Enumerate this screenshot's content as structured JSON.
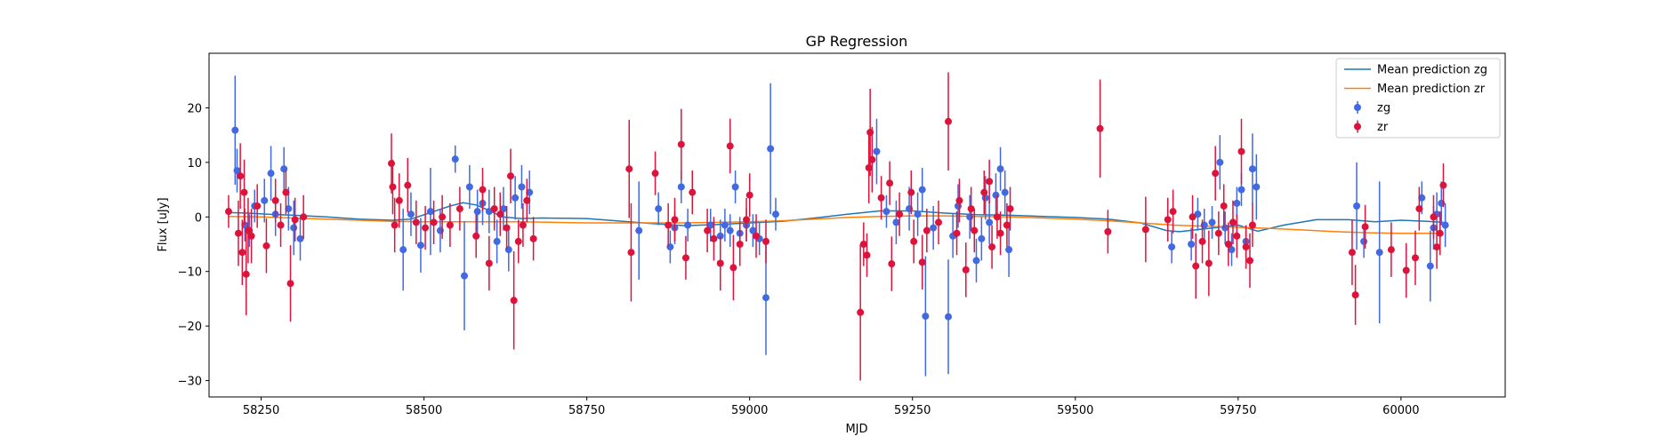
{
  "chart_data": {
    "type": "scatter",
    "title": "GP Regression",
    "xlabel": "MJD",
    "ylabel": "Flux [uJy]",
    "xlim": [
      58170,
      60160
    ],
    "ylim": [
      -33,
      30
    ],
    "xticks": [
      58250,
      58500,
      58750,
      59000,
      59250,
      59500,
      59750,
      60000
    ],
    "yticks": [
      -30,
      -20,
      -10,
      0,
      10,
      20
    ],
    "grid": false,
    "legend_position": "top-right",
    "colors": {
      "zg_line": "#1f77b4",
      "zr_line": "#ff7f0e",
      "zg_points": "#4169e1",
      "zr_points": "#dc143c"
    },
    "lines": [
      {
        "name": "Mean prediction zg",
        "x": [
          58200,
          58230,
          58260,
          58300,
          58350,
          58400,
          58450,
          58480,
          58510,
          58540,
          58560,
          58580,
          58600,
          58620,
          58650,
          58680,
          58750,
          58850,
          58900,
          58950,
          59000,
          59050,
          59100,
          59150,
          59200,
          59250,
          59300,
          59350,
          59400,
          59450,
          59500,
          59550,
          59600,
          59640,
          59660,
          59690,
          59720,
          59750,
          59780,
          59820,
          59870,
          59920,
          59960,
          60000,
          60040,
          60065
        ],
        "y": [
          0.8,
          0.7,
          0.5,
          0.3,
          0.0,
          -0.4,
          -0.6,
          -0.4,
          0.8,
          2.0,
          2.6,
          2.2,
          1.2,
          0.0,
          -0.3,
          -0.2,
          -0.3,
          -1.2,
          -1.6,
          -1.4,
          -1.1,
          -0.8,
          -0.2,
          0.5,
          1.1,
          1.1,
          0.7,
          0.4,
          0.3,
          0.1,
          -0.1,
          -0.4,
          -1.1,
          -2.5,
          -2.7,
          -2.3,
          -1.9,
          -1.5,
          -2.6,
          -1.5,
          -0.5,
          -0.5,
          -0.9,
          -0.6,
          -0.8,
          -1.0
        ]
      },
      {
        "name": "Mean prediction zr",
        "x": [
          58200,
          58250,
          58300,
          58350,
          58400,
          58450,
          58500,
          58550,
          58600,
          58650,
          58700,
          58750,
          58800,
          58850,
          58900,
          58950,
          59000,
          59050,
          59100,
          59150,
          59200,
          59250,
          59300,
          59350,
          59400,
          59450,
          59500,
          59550,
          59600,
          59650,
          59700,
          59750,
          59800,
          59850,
          59900,
          59950,
          60000,
          60065
        ],
        "y": [
          0.1,
          0.0,
          -0.2,
          -0.4,
          -0.6,
          -0.8,
          -0.9,
          -0.9,
          -0.9,
          -0.9,
          -1.0,
          -1.1,
          -1.1,
          -1.1,
          -1.1,
          -1.0,
          -0.9,
          -0.7,
          -0.4,
          -0.1,
          0.1,
          0.2,
          0.2,
          0.1,
          0.0,
          -0.2,
          -0.4,
          -0.7,
          -1.1,
          -1.5,
          -1.7,
          -1.9,
          -2.1,
          -2.4,
          -2.7,
          -2.9,
          -3.0,
          -3.0
        ]
      }
    ],
    "series": [
      {
        "name": "zg",
        "points": [
          [
            58210,
            15.9,
            10.0
          ],
          [
            58213,
            8.5,
            4.0
          ],
          [
            58225,
            -1.5,
            3.0
          ],
          [
            58232,
            -2.5,
            3.0
          ],
          [
            58240,
            2.0,
            3.0
          ],
          [
            58255,
            3.0,
            4.0
          ],
          [
            58265,
            8.0,
            5.0
          ],
          [
            58272,
            0.5,
            4.0
          ],
          [
            58285,
            8.8,
            4.0
          ],
          [
            58292,
            1.5,
            4.0
          ],
          [
            58300,
            -2.0,
            5.0
          ],
          [
            58310,
            -4.0,
            4.0
          ],
          [
            58468,
            -6.0,
            7.5
          ],
          [
            58480,
            0.5,
            4.0
          ],
          [
            58495,
            -5.2,
            5.0
          ],
          [
            58510,
            1.0,
            8.0
          ],
          [
            58525,
            -2.5,
            4.0
          ],
          [
            58548,
            10.6,
            2.5
          ],
          [
            58562,
            -10.8,
            10.0
          ],
          [
            58570,
            5.5,
            4.0
          ],
          [
            58582,
            1.0,
            4.0
          ],
          [
            58590,
            2.5,
            4.0
          ],
          [
            58600,
            1.0,
            4.0
          ],
          [
            58612,
            -4.5,
            4.0
          ],
          [
            58622,
            1.5,
            4.0
          ],
          [
            58630,
            -6.0,
            4.0
          ],
          [
            58640,
            3.5,
            4.0
          ],
          [
            58650,
            5.5,
            4.0
          ],
          [
            58662,
            4.5,
            4.0
          ],
          [
            58830,
            -2.5,
            9.0
          ],
          [
            58860,
            1.5,
            3.0
          ],
          [
            58878,
            -5.5,
            3.0
          ],
          [
            58885,
            -2.0,
            3.0
          ],
          [
            58895,
            5.5,
            3.0
          ],
          [
            58905,
            -1.5,
            3.0
          ],
          [
            58940,
            -1.5,
            3.0
          ],
          [
            58955,
            -3.5,
            3.0
          ],
          [
            58962,
            -1.5,
            3.0
          ],
          [
            58970,
            -2.5,
            3.0
          ],
          [
            58978,
            5.5,
            3.0
          ],
          [
            58985,
            -3.0,
            3.0
          ],
          [
            58995,
            -1.5,
            3.0
          ],
          [
            59005,
            -2.5,
            3.0
          ],
          [
            59015,
            -4.0,
            3.0
          ],
          [
            59025,
            -14.8,
            10.5
          ],
          [
            59032,
            12.5,
            12.0
          ],
          [
            59040,
            0.5,
            3.0
          ],
          [
            59195,
            12.0,
            6.0
          ],
          [
            59210,
            1.0,
            3.0
          ],
          [
            59225,
            -1.0,
            4.0
          ],
          [
            59245,
            1.5,
            4.0
          ],
          [
            59258,
            0.5,
            4.0
          ],
          [
            59265,
            5.0,
            4.0
          ],
          [
            59270,
            -18.2,
            11.0
          ],
          [
            59282,
            -2.0,
            4.0
          ],
          [
            59305,
            -18.3,
            10.5
          ],
          [
            59312,
            -3.5,
            4.0
          ],
          [
            59320,
            2.0,
            4.0
          ],
          [
            59338,
            0.0,
            4.0
          ],
          [
            59348,
            -8.0,
            4.0
          ],
          [
            59356,
            -4.0,
            4.0
          ],
          [
            59362,
            3.5,
            4.0
          ],
          [
            59368,
            -1.0,
            4.0
          ],
          [
            59378,
            4.0,
            4.0
          ],
          [
            59385,
            8.8,
            4.0
          ],
          [
            59392,
            4.5,
            4.0
          ],
          [
            59398,
            -6.0,
            5.0
          ],
          [
            59648,
            -5.5,
            3.0
          ],
          [
            59678,
            -5.0,
            3.0
          ],
          [
            59688,
            0.5,
            3.0
          ],
          [
            59698,
            -1.5,
            3.0
          ],
          [
            59710,
            -1.0,
            3.0
          ],
          [
            59722,
            10.0,
            5.0
          ],
          [
            59730,
            -2.0,
            3.0
          ],
          [
            59740,
            -6.0,
            3.0
          ],
          [
            59748,
            2.5,
            3.0
          ],
          [
            59755,
            5.0,
            3.0
          ],
          [
            59762,
            -4.5,
            3.0
          ],
          [
            59772,
            8.8,
            6.5
          ],
          [
            59778,
            5.5,
            6.0
          ],
          [
            59932,
            2.0,
            8.0
          ],
          [
            59943,
            -4.5,
            3.0
          ],
          [
            59967,
            -6.5,
            13.0
          ],
          [
            60032,
            3.5,
            3.0
          ],
          [
            60045,
            -9.0,
            6.5
          ],
          [
            60050,
            -2.0,
            4.0
          ],
          [
            60055,
            0.5,
            4.0
          ],
          [
            60062,
            2.5,
            4.0
          ],
          [
            60068,
            -1.5,
            4.0
          ]
        ]
      },
      {
        "name": "zr",
        "points": [
          [
            58200,
            1.0,
            3.0
          ],
          [
            58215,
            -3.0,
            6.0
          ],
          [
            58218,
            7.5,
            6.0
          ],
          [
            58221,
            -6.5,
            6.0
          ],
          [
            58224,
            4.5,
            6.0
          ],
          [
            58227,
            -10.5,
            7.5
          ],
          [
            58230,
            -2.5,
            6.0
          ],
          [
            58235,
            -3.5,
            5.0
          ],
          [
            58244,
            2.0,
            4.0
          ],
          [
            58258,
            -5.3,
            5.0
          ],
          [
            58272,
            3.0,
            4.0
          ],
          [
            58280,
            -1.5,
            4.0
          ],
          [
            58288,
            4.5,
            4.0
          ],
          [
            58295,
            -12.2,
            7.0
          ],
          [
            58302,
            -0.5,
            4.0
          ],
          [
            58315,
            0.0,
            4.0
          ],
          [
            58450,
            9.8,
            5.5
          ],
          [
            58452,
            5.5,
            5.0
          ],
          [
            58455,
            -1.5,
            5.0
          ],
          [
            58462,
            3.0,
            5.0
          ],
          [
            58475,
            5.8,
            5.0
          ],
          [
            58488,
            -1.0,
            4.0
          ],
          [
            58502,
            -2.0,
            4.0
          ],
          [
            58515,
            -1.0,
            4.0
          ],
          [
            58528,
            0.0,
            4.0
          ],
          [
            58540,
            -1.5,
            4.0
          ],
          [
            58555,
            1.5,
            4.0
          ],
          [
            58580,
            -3.5,
            4.0
          ],
          [
            58590,
            5.0,
            4.0
          ],
          [
            58600,
            -8.5,
            5.0
          ],
          [
            58608,
            1.5,
            4.0
          ],
          [
            58617,
            0.5,
            4.0
          ],
          [
            58627,
            -2.0,
            4.0
          ],
          [
            58633,
            7.5,
            5.0
          ],
          [
            58638,
            -15.3,
            9.0
          ],
          [
            58645,
            -4.5,
            4.0
          ],
          [
            58652,
            -1.5,
            4.0
          ],
          [
            58658,
            3.0,
            4.0
          ],
          [
            58668,
            -4.0,
            4.0
          ],
          [
            58815,
            8.8,
            9.0
          ],
          [
            58818,
            -6.5,
            9.0
          ],
          [
            58855,
            8.0,
            4.0
          ],
          [
            58875,
            -1.5,
            4.0
          ],
          [
            58885,
            -0.5,
            4.0
          ],
          [
            58895,
            13.3,
            6.5
          ],
          [
            58902,
            -7.5,
            4.0
          ],
          [
            58912,
            4.5,
            4.0
          ],
          [
            58935,
            -2.5,
            4.0
          ],
          [
            58945,
            -4.0,
            4.0
          ],
          [
            58955,
            -8.5,
            5.0
          ],
          [
            58970,
            13.0,
            5.0
          ],
          [
            58975,
            -9.3,
            6.0
          ],
          [
            58985,
            -5.0,
            4.0
          ],
          [
            58995,
            -0.5,
            4.0
          ],
          [
            59000,
            4.0,
            4.0
          ],
          [
            59010,
            -3.5,
            4.0
          ],
          [
            59025,
            -4.5,
            4.0
          ],
          [
            59170,
            -17.5,
            12.5
          ],
          [
            59175,
            -5.0,
            4.0
          ],
          [
            59180,
            -7.0,
            4.0
          ],
          [
            59183,
            9.0,
            6.5
          ],
          [
            59185,
            15.5,
            8.0
          ],
          [
            59188,
            10.5,
            6.0
          ],
          [
            59202,
            3.5,
            4.0
          ],
          [
            59215,
            6.2,
            4.0
          ],
          [
            59218,
            -8.6,
            5.0
          ],
          [
            59230,
            0.5,
            4.0
          ],
          [
            59248,
            4.5,
            4.0
          ],
          [
            59252,
            -4.5,
            4.0
          ],
          [
            59265,
            -8.3,
            5.0
          ],
          [
            59272,
            -2.5,
            4.0
          ],
          [
            59290,
            -1.0,
            4.0
          ],
          [
            59305,
            17.5,
            9.0
          ],
          [
            59318,
            -3.0,
            4.0
          ],
          [
            59322,
            3.0,
            4.0
          ],
          [
            59332,
            -9.7,
            5.0
          ],
          [
            59340,
            1.5,
            4.0
          ],
          [
            59345,
            -2.5,
            4.0
          ],
          [
            59360,
            4.5,
            4.0
          ],
          [
            59368,
            6.5,
            4.0
          ],
          [
            59372,
            -5.5,
            4.0
          ],
          [
            59380,
            0.0,
            4.0
          ],
          [
            59385,
            -3.0,
            4.0
          ],
          [
            59395,
            -1.5,
            4.0
          ],
          [
            59400,
            1.5,
            4.0
          ],
          [
            59538,
            16.2,
            9.0
          ],
          [
            59550,
            -2.7,
            4.0
          ],
          [
            59608,
            -2.3,
            6.0
          ],
          [
            59642,
            -0.5,
            4.0
          ],
          [
            59650,
            1.0,
            4.0
          ],
          [
            59680,
            0.0,
            4.0
          ],
          [
            59685,
            -9.0,
            6.0
          ],
          [
            59695,
            -4.5,
            4.0
          ],
          [
            59705,
            -8.5,
            6.0
          ],
          [
            59715,
            8.0,
            5.0
          ],
          [
            59720,
            -3.0,
            4.0
          ],
          [
            59728,
            2.0,
            4.0
          ],
          [
            59735,
            -5.0,
            4.0
          ],
          [
            59742,
            -1.0,
            4.0
          ],
          [
            59748,
            -3.5,
            4.0
          ],
          [
            59755,
            12.0,
            6.0
          ],
          [
            59762,
            -5.5,
            4.0
          ],
          [
            59768,
            -8.0,
            5.0
          ],
          [
            59772,
            -1.5,
            4.0
          ],
          [
            59925,
            -6.5,
            6.0
          ],
          [
            59930,
            -14.3,
            5.5
          ],
          [
            59945,
            -1.8,
            4.0
          ],
          [
            59985,
            -6.0,
            5.0
          ],
          [
            60008,
            -9.8,
            5.0
          ],
          [
            60022,
            -7.5,
            5.0
          ],
          [
            60028,
            1.5,
            4.0
          ],
          [
            60050,
            0.0,
            4.0
          ],
          [
            60055,
            -5.5,
            4.0
          ],
          [
            60060,
            -3.0,
            4.0
          ],
          [
            60065,
            5.8,
            4.0
          ]
        ]
      }
    ]
  }
}
